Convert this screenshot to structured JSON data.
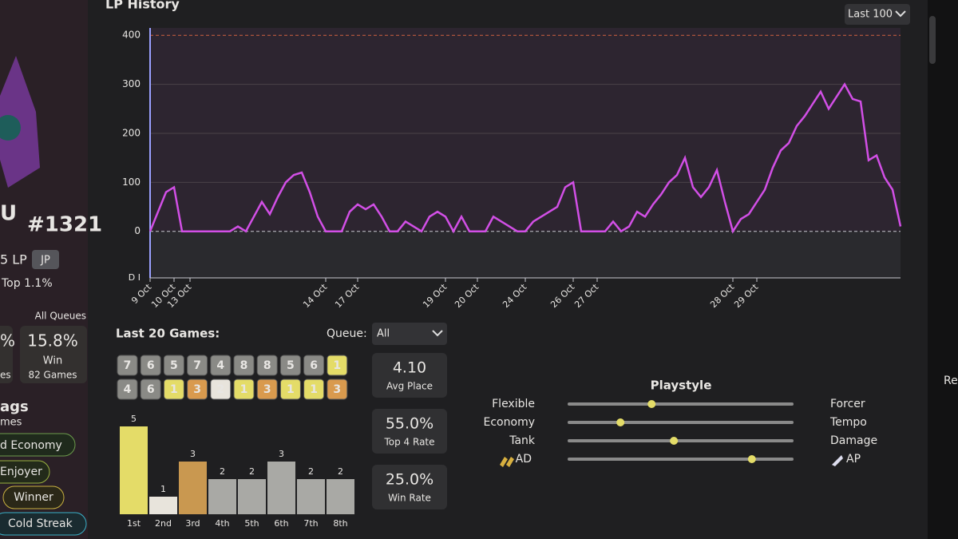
{
  "sidebar": {
    "name": "U",
    "rank": "#1321",
    "lp": "5 LP",
    "region": "JP",
    "top": "Top 1.1%",
    "queues": "All Queues",
    "stat_left": "%",
    "stat_left_label": "es",
    "win_rate": "15.8%",
    "win_label": "Win",
    "games": "82 Games",
    "tags_title": "ags",
    "tags_subtitle": "mes",
    "tags": [
      "d Economy",
      "Enjoyer",
      "Winner",
      "Cold Streak"
    ]
  },
  "lp_history": {
    "type": "line",
    "title": "LP History",
    "range": "Last 100",
    "categories": [
      "9 Oct",
      null,
      null,
      "10 Oct",
      null,
      "13 Oct",
      null,
      null,
      null,
      null,
      null,
      null,
      null,
      null,
      null,
      null,
      null,
      null,
      null,
      null,
      null,
      null,
      "14 Oct",
      null,
      null,
      null,
      "17 Oct",
      null,
      null,
      null,
      null,
      null,
      null,
      null,
      null,
      null,
      null,
      "19 Oct",
      null,
      null,
      null,
      "20 Oct",
      null,
      null,
      null,
      null,
      null,
      "24 Oct",
      null,
      null,
      null,
      null,
      null,
      "26 Oct",
      null,
      null,
      "27 Oct",
      null,
      null,
      null,
      null,
      null,
      null,
      null,
      null,
      null,
      null,
      null,
      null,
      null,
      null,
      null,
      null,
      "28 Oct",
      null,
      null,
      "29 Oct",
      null,
      null,
      null,
      null,
      null,
      null,
      null,
      null,
      null,
      null,
      null,
      null,
      null,
      null,
      null,
      null,
      null,
      null
    ],
    "values": [
      0,
      40,
      80,
      90,
      0,
      0,
      0,
      0,
      0,
      0,
      0,
      10,
      0,
      30,
      60,
      35,
      70,
      100,
      115,
      120,
      80,
      30,
      0,
      0,
      0,
      40,
      55,
      45,
      55,
      30,
      0,
      0,
      20,
      10,
      0,
      30,
      40,
      30,
      0,
      30,
      0,
      0,
      0,
      30,
      20,
      10,
      0,
      0,
      20,
      30,
      40,
      50,
      90,
      100,
      0,
      0,
      0,
      0,
      20,
      0,
      10,
      40,
      30,
      55,
      75,
      100,
      115,
      150,
      90,
      70,
      90,
      125,
      60,
      0,
      25,
      35,
      60,
      85,
      130,
      165,
      180,
      215,
      235,
      260,
      285,
      250,
      275,
      300,
      270,
      265,
      145,
      155,
      110,
      85,
      10
    ],
    "color": "#d24fe6",
    "ylim": [
      -95,
      415
    ],
    "yticks": [
      0,
      100,
      200,
      300,
      400
    ],
    "rank_label": "D I"
  },
  "last_games": {
    "title": "Last 20 Games:",
    "queue_label": "Queue:",
    "queue": "All",
    "placements": [
      [
        7,
        6,
        5,
        7,
        4,
        8,
        8,
        5,
        6,
        1
      ],
      [
        4,
        6,
        1,
        3,
        2,
        1,
        3,
        1,
        1,
        3
      ]
    ]
  },
  "stats": [
    {
      "value": "4.10",
      "label": "Avg Place"
    },
    {
      "value": "55.0%",
      "label": "Top 4 Rate"
    },
    {
      "value": "25.0%",
      "label": "Win Rate"
    }
  ],
  "placement_chart": {
    "type": "bar",
    "categories": [
      "1st",
      "2nd",
      "3rd",
      "4th",
      "5th",
      "6th",
      "7th",
      "8th"
    ],
    "values": [
      5,
      1,
      3,
      2,
      2,
      3,
      2,
      2
    ],
    "colors": [
      "#e4dc68",
      "#e8e4dc",
      "#c99850",
      "#a9a9a5",
      "#a9a9a5",
      "#a9a9a5",
      "#a9a9a5",
      "#a9a9a5"
    ]
  },
  "playstyle": {
    "title": "Playstyle",
    "rows": [
      {
        "left": "Flexible",
        "right": "Forcer",
        "value": 37
      },
      {
        "left": "Economy",
        "right": "Tempo",
        "value": 23
      },
      {
        "left": "Tank",
        "right": "Damage",
        "value": 47
      },
      {
        "left": "AD",
        "right": "AP",
        "value": 82
      }
    ]
  },
  "right_edge": "Re"
}
